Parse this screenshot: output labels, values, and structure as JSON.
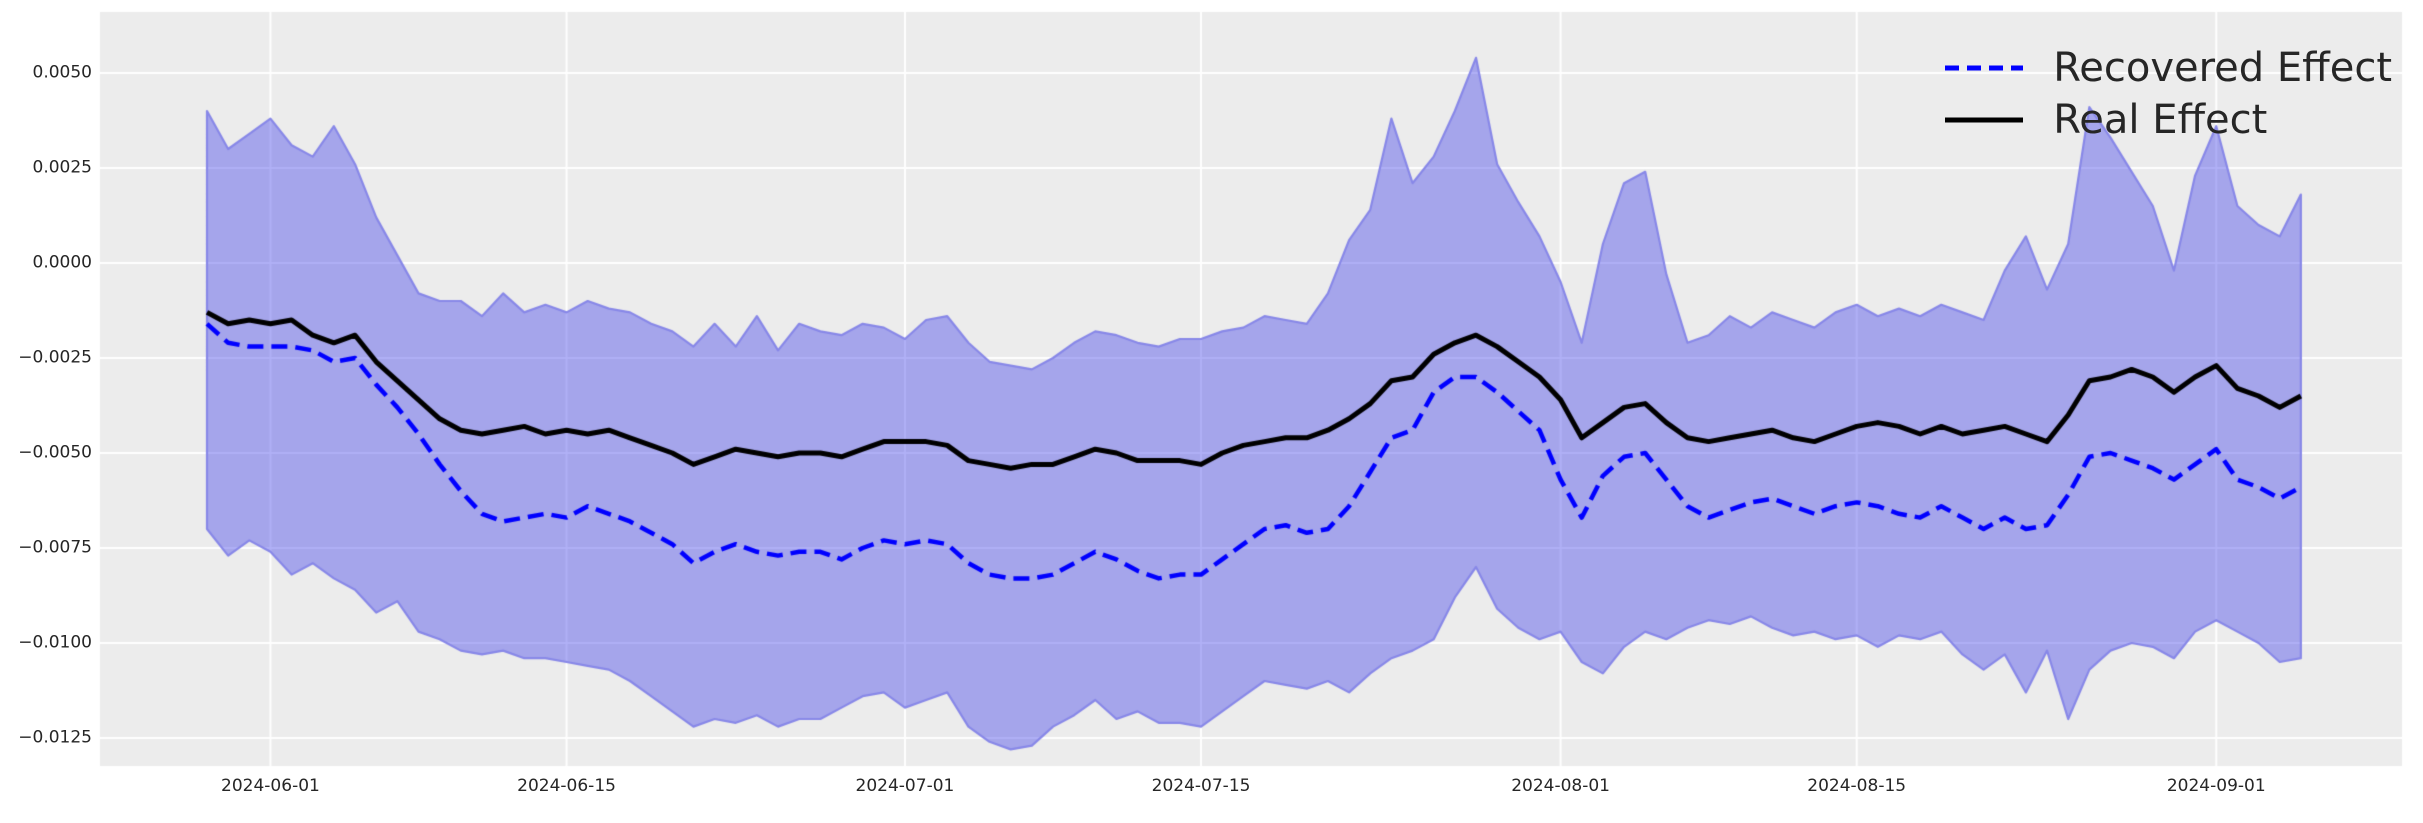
{
  "figure": {
    "background_color": "#ffffff",
    "panel_background_color": "#ececec",
    "grid_color": "#ffffff",
    "tick_text_color": "#262626"
  },
  "legend": {
    "position": "upper right",
    "items": [
      {
        "label": "Recovered Effect",
        "color": "#0000ff",
        "style": "dashed"
      },
      {
        "label": "Real Effect",
        "color": "#000000",
        "style": "solid"
      }
    ]
  },
  "chart_data": {
    "type": "line",
    "title": "",
    "xlabel": "",
    "ylabel": "",
    "grid": true,
    "legend_position": "upper right",
    "ylim": [
      -0.01324,
      0.0066
    ],
    "x": [
      "2024-05-29",
      "2024-05-30",
      "2024-05-31",
      "2024-06-01",
      "2024-06-02",
      "2024-06-03",
      "2024-06-04",
      "2024-06-05",
      "2024-06-06",
      "2024-06-07",
      "2024-06-08",
      "2024-06-09",
      "2024-06-10",
      "2024-06-11",
      "2024-06-12",
      "2024-06-13",
      "2024-06-14",
      "2024-06-15",
      "2024-06-16",
      "2024-06-17",
      "2024-06-18",
      "2024-06-19",
      "2024-06-20",
      "2024-06-21",
      "2024-06-22",
      "2024-06-23",
      "2024-06-24",
      "2024-06-25",
      "2024-06-26",
      "2024-06-27",
      "2024-06-28",
      "2024-06-29",
      "2024-06-30",
      "2024-07-01",
      "2024-07-02",
      "2024-07-03",
      "2024-07-04",
      "2024-07-05",
      "2024-07-06",
      "2024-07-07",
      "2024-07-08",
      "2024-07-09",
      "2024-07-10",
      "2024-07-11",
      "2024-07-12",
      "2024-07-13",
      "2024-07-14",
      "2024-07-15",
      "2024-07-16",
      "2024-07-17",
      "2024-07-18",
      "2024-07-19",
      "2024-07-20",
      "2024-07-21",
      "2024-07-22",
      "2024-07-23",
      "2024-07-24",
      "2024-07-25",
      "2024-07-26",
      "2024-07-27",
      "2024-07-28",
      "2024-07-29",
      "2024-07-30",
      "2024-07-31",
      "2024-08-01",
      "2024-08-02",
      "2024-08-03",
      "2024-08-04",
      "2024-08-05",
      "2024-08-06",
      "2024-08-07",
      "2024-08-08",
      "2024-08-09",
      "2024-08-10",
      "2024-08-11",
      "2024-08-12",
      "2024-08-13",
      "2024-08-14",
      "2024-08-15",
      "2024-08-16",
      "2024-08-17",
      "2024-08-18",
      "2024-08-19",
      "2024-08-20",
      "2024-08-21",
      "2024-08-22",
      "2024-08-23",
      "2024-08-24",
      "2024-08-25",
      "2024-08-26",
      "2024-08-27",
      "2024-08-28",
      "2024-08-29",
      "2024-08-30",
      "2024-08-31",
      "2024-09-01",
      "2024-09-02",
      "2024-09-03",
      "2024-09-04",
      "2024-09-05"
    ],
    "x_tick_labels": [
      "2024-06-01",
      "2024-06-15",
      "2024-07-01",
      "2024-07-15",
      "2024-08-01",
      "2024-08-15",
      "2024-09-01"
    ],
    "x_tick_indices": [
      3,
      17,
      33,
      47,
      64,
      78,
      95
    ],
    "y_ticks": [
      {
        "value": 0.005,
        "label": "0.0050"
      },
      {
        "value": 0.0025,
        "label": "0.0025"
      },
      {
        "value": 0.0,
        "label": "0.0000"
      },
      {
        "value": -0.0025,
        "label": "−0.0025"
      },
      {
        "value": -0.005,
        "label": "−0.0050"
      },
      {
        "value": -0.0075,
        "label": "−0.0075"
      },
      {
        "value": -0.01,
        "label": "−0.0100"
      },
      {
        "value": -0.0125,
        "label": "−0.0125"
      }
    ],
    "series": [
      {
        "name": "Recovered Effect",
        "color": "#0000ff",
        "line_style": "dashed",
        "line_width": 4.5,
        "values": [
          -0.0016,
          -0.0021,
          -0.0022,
          -0.0022,
          -0.0022,
          -0.0023,
          -0.0026,
          -0.0025,
          -0.0032,
          -0.0038,
          -0.0045,
          -0.0053,
          -0.006,
          -0.0066,
          -0.0068,
          -0.0067,
          -0.0066,
          -0.0067,
          -0.0064,
          -0.0066,
          -0.0068,
          -0.0071,
          -0.0074,
          -0.0079,
          -0.0076,
          -0.0074,
          -0.0076,
          -0.0077,
          -0.0076,
          -0.0076,
          -0.0078,
          -0.0075,
          -0.0073,
          -0.0074,
          -0.0073,
          -0.0074,
          -0.0079,
          -0.0082,
          -0.0083,
          -0.0083,
          -0.0082,
          -0.0079,
          -0.0076,
          -0.0078,
          -0.0081,
          -0.0083,
          -0.0082,
          -0.0082,
          -0.0078,
          -0.0074,
          -0.007,
          -0.0069,
          -0.0071,
          -0.007,
          -0.0064,
          -0.0055,
          -0.0046,
          -0.0044,
          -0.0034,
          -0.003,
          -0.003,
          -0.0034,
          -0.0039,
          -0.0044,
          -0.0057,
          -0.0067,
          -0.0056,
          -0.0051,
          -0.005,
          -0.0057,
          -0.0064,
          -0.0067,
          -0.0065,
          -0.0063,
          -0.0062,
          -0.0064,
          -0.0066,
          -0.0064,
          -0.0063,
          -0.0064,
          -0.0066,
          -0.0067,
          -0.0064,
          -0.0067,
          -0.007,
          -0.0067,
          -0.007,
          -0.0069,
          -0.0061,
          -0.0051,
          -0.005,
          -0.0052,
          -0.0054,
          -0.0057,
          -0.0053,
          -0.0049,
          -0.0057,
          -0.0059,
          -0.0062,
          -0.0059
        ]
      },
      {
        "name": "Real Effect",
        "color": "#000000",
        "line_style": "solid",
        "line_width": 5,
        "values": [
          -0.0013,
          -0.0016,
          -0.0015,
          -0.0016,
          -0.0015,
          -0.0019,
          -0.0021,
          -0.0019,
          -0.0026,
          -0.0031,
          -0.0036,
          -0.0041,
          -0.0044,
          -0.0045,
          -0.0044,
          -0.0043,
          -0.0045,
          -0.0044,
          -0.0045,
          -0.0044,
          -0.0046,
          -0.0048,
          -0.005,
          -0.0053,
          -0.0051,
          -0.0049,
          -0.005,
          -0.0051,
          -0.005,
          -0.005,
          -0.0051,
          -0.0049,
          -0.0047,
          -0.0047,
          -0.0047,
          -0.0048,
          -0.0052,
          -0.0053,
          -0.0054,
          -0.0053,
          -0.0053,
          -0.0051,
          -0.0049,
          -0.005,
          -0.0052,
          -0.0052,
          -0.0052,
          -0.0053,
          -0.005,
          -0.0048,
          -0.0047,
          -0.0046,
          -0.0046,
          -0.0044,
          -0.0041,
          -0.0037,
          -0.0031,
          -0.003,
          -0.0024,
          -0.0021,
          -0.0019,
          -0.0022,
          -0.0026,
          -0.003,
          -0.0036,
          -0.0046,
          -0.0042,
          -0.0038,
          -0.0037,
          -0.0042,
          -0.0046,
          -0.0047,
          -0.0046,
          -0.0045,
          -0.0044,
          -0.0046,
          -0.0047,
          -0.0045,
          -0.0043,
          -0.0042,
          -0.0043,
          -0.0045,
          -0.0043,
          -0.0045,
          -0.0044,
          -0.0043,
          -0.0045,
          -0.0047,
          -0.004,
          -0.0031,
          -0.003,
          -0.0028,
          -0.003,
          -0.0034,
          -0.003,
          -0.0027,
          -0.0033,
          -0.0035,
          -0.0038,
          -0.0035
        ]
      }
    ],
    "band": {
      "name": "confidence-interval",
      "fill_color": "rgba(80, 80, 235, 0.45)",
      "edge_color": "#8888e8",
      "edge_width": 2.2,
      "upper": [
        0.004,
        0.003,
        0.0034,
        0.0038,
        0.0031,
        0.0028,
        0.0036,
        0.0026,
        0.0012,
        0.0002,
        -0.0008,
        -0.001,
        -0.001,
        -0.0014,
        -0.0008,
        -0.0013,
        -0.0011,
        -0.0013,
        -0.001,
        -0.0012,
        -0.0013,
        -0.0016,
        -0.0018,
        -0.0022,
        -0.0016,
        -0.0022,
        -0.0014,
        -0.0023,
        -0.0016,
        -0.0018,
        -0.0019,
        -0.0016,
        -0.0017,
        -0.002,
        -0.0015,
        -0.0014,
        -0.0021,
        -0.0026,
        -0.0027,
        -0.0028,
        -0.0025,
        -0.0021,
        -0.0018,
        -0.0019,
        -0.0021,
        -0.0022,
        -0.002,
        -0.002,
        -0.0018,
        -0.0017,
        -0.0014,
        -0.0015,
        -0.0016,
        -0.0008,
        0.0006,
        0.0014,
        0.0038,
        0.0021,
        0.0028,
        0.004,
        0.0054,
        0.0026,
        0.0016,
        0.0007,
        -0.0005,
        -0.0021,
        0.0005,
        0.0021,
        0.0024,
        -0.0003,
        -0.0021,
        -0.0019,
        -0.0014,
        -0.0017,
        -0.0013,
        -0.0015,
        -0.0017,
        -0.0013,
        -0.0011,
        -0.0014,
        -0.0012,
        -0.0014,
        -0.0011,
        -0.0013,
        -0.0015,
        -0.0002,
        0.0007,
        -0.0007,
        0.0005,
        0.0041,
        0.0033,
        0.0024,
        0.0015,
        -0.0002,
        0.0023,
        0.0036,
        0.0015,
        0.001,
        0.0007,
        0.0018
      ],
      "lower": [
        -0.007,
        -0.0077,
        -0.0073,
        -0.0076,
        -0.0082,
        -0.0079,
        -0.0083,
        -0.0086,
        -0.0092,
        -0.0089,
        -0.0097,
        -0.0099,
        -0.0102,
        -0.0103,
        -0.0102,
        -0.0104,
        -0.0104,
        -0.0105,
        -0.0106,
        -0.0107,
        -0.011,
        -0.0114,
        -0.0118,
        -0.0122,
        -0.012,
        -0.0121,
        -0.0119,
        -0.0122,
        -0.012,
        -0.012,
        -0.0117,
        -0.0114,
        -0.0113,
        -0.0117,
        -0.0115,
        -0.0113,
        -0.0122,
        -0.0126,
        -0.0128,
        -0.0127,
        -0.0122,
        -0.0119,
        -0.0115,
        -0.012,
        -0.0118,
        -0.0121,
        -0.0121,
        -0.0122,
        -0.0118,
        -0.0114,
        -0.011,
        -0.0111,
        -0.0112,
        -0.011,
        -0.0113,
        -0.0108,
        -0.0104,
        -0.0102,
        -0.0099,
        -0.0088,
        -0.008,
        -0.0091,
        -0.0096,
        -0.0099,
        -0.0097,
        -0.0105,
        -0.0108,
        -0.0101,
        -0.0097,
        -0.0099,
        -0.0096,
        -0.0094,
        -0.0095,
        -0.0093,
        -0.0096,
        -0.0098,
        -0.0097,
        -0.0099,
        -0.0098,
        -0.0101,
        -0.0098,
        -0.0099,
        -0.0097,
        -0.0103,
        -0.0107,
        -0.0103,
        -0.0113,
        -0.0102,
        -0.012,
        -0.0107,
        -0.0102,
        -0.01,
        -0.0101,
        -0.0104,
        -0.0097,
        -0.0094,
        -0.0097,
        -0.01,
        -0.0105,
        -0.0104
      ]
    }
  }
}
